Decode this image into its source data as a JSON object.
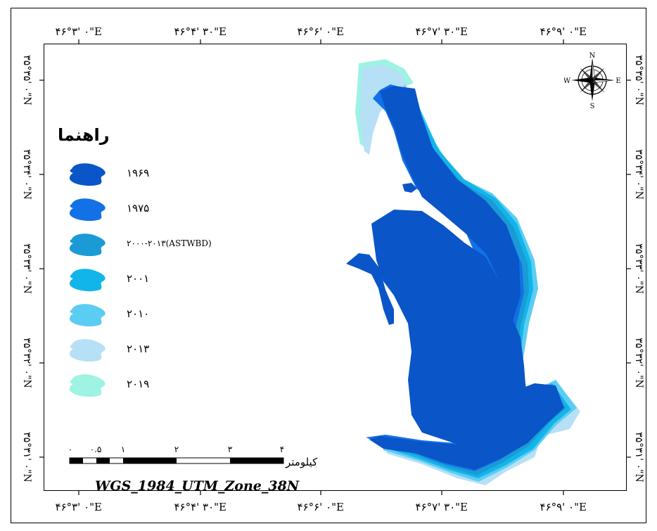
{
  "map": {
    "top_ticks": [
      "۴۶°۳' ۰\"E",
      "۴۶°۴' ۳۰\"E",
      "۴۶°۶' ۰\"E",
      "۴۶°۷' ۳۰\"E",
      "۴۶°۹' ۰\"E"
    ],
    "bottom_ticks": [
      "۴۶°۳' ۰\"E",
      "۴۶°۴' ۳۰\"E",
      "۴۶°۶' ۰\"E",
      "۴۶°۷' ۳۰\"E",
      "۴۶°۹' ۰\"E"
    ],
    "left_ticks": [
      "۳۵°۳۵' ۰\"N",
      "۳۵°۳۴' ۰\"N",
      "۳۵°۳۳' ۰\"N",
      "۳۵°۳۲' ۰\"N",
      "۳۵°۳۱' ۰\"N"
    ],
    "right_ticks": [
      "۳۵°۳۵' ۰\"N",
      "۳۵°۳۴' ۰\"N",
      "۳۵°۳۳' ۰\"N",
      "۳۵°۳۲' ۰\"N",
      "۳۵°۳۱' ۰\"N"
    ]
  },
  "legend": {
    "title": "راهنما",
    "items": [
      {
        "label": "۱۹۶۹",
        "color": "#0a55c8"
      },
      {
        "label": "۱۹۷۵",
        "color": "#1271e6"
      },
      {
        "label": "۲۰۰۰-۲۰۱۳(ASTWBD)",
        "color": "#1a9bd6"
      },
      {
        "label": "۲۰۰۱",
        "color": "#12b5ea"
      },
      {
        "label": "۲۰۱۰",
        "color": "#5ccdf2"
      },
      {
        "label": "۲۰۱۳",
        "color": "#b6e0f6"
      },
      {
        "label": "۲۰۱۹",
        "color": "#9ef3e3"
      }
    ]
  },
  "scale": {
    "numbers": [
      "۰",
      "۰.۵",
      "۱",
      "۲",
      "۳",
      "۴"
    ],
    "unit": "کیلومتر"
  },
  "projection": "WGS_1984_UTM_Zone_38N",
  "compass": {
    "n": "N",
    "s": "S",
    "e": "E",
    "w": "W"
  }
}
